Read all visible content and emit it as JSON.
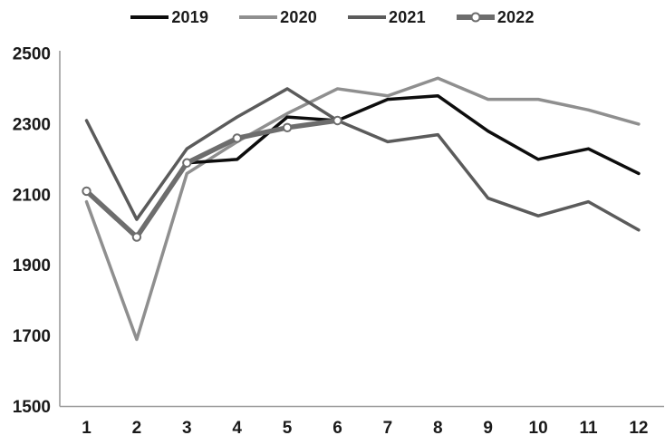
{
  "chart_data": {
    "type": "line",
    "title": "",
    "xlabel": "",
    "ylabel": "",
    "categories": [
      "1",
      "2",
      "3",
      "4",
      "5",
      "6",
      "7",
      "8",
      "9",
      "10",
      "11",
      "12"
    ],
    "ylim": [
      1500,
      2500
    ],
    "yticks": [
      1500,
      1700,
      1900,
      2100,
      2300,
      2500
    ],
    "grid": false,
    "legend_position": "top",
    "series": [
      {
        "name": "2019",
        "color": "#0d0d0d",
        "width": 3.5,
        "marker": null,
        "values": [
          null,
          null,
          2190,
          2200,
          2320,
          2310,
          2370,
          2380,
          2280,
          2200,
          2230,
          2160
        ]
      },
      {
        "name": "2020",
        "color": "#8f8f8f",
        "width": 3.5,
        "marker": null,
        "values": [
          2080,
          1690,
          2160,
          2250,
          2330,
          2400,
          2380,
          2430,
          2370,
          2370,
          2340,
          2300
        ]
      },
      {
        "name": "2021",
        "color": "#5b5b5b",
        "width": 3.5,
        "marker": null,
        "values": [
          2310,
          2030,
          2230,
          2320,
          2400,
          2310,
          2250,
          2270,
          2090,
          2040,
          2080,
          2000
        ]
      },
      {
        "name": "2022",
        "color": "#6d6d6d",
        "width": 5.5,
        "marker": "circle",
        "values": [
          2110,
          1980,
          2190,
          2260,
          2290,
          2310,
          null,
          null,
          null,
          null,
          null,
          null
        ]
      }
    ],
    "draw_order": [
      1,
      2,
      0,
      3
    ]
  },
  "colors": {
    "axis": "#9d9d9d",
    "text": "#1a1a1a",
    "background": "#ffffff",
    "marker_fill": "#ffffff"
  }
}
